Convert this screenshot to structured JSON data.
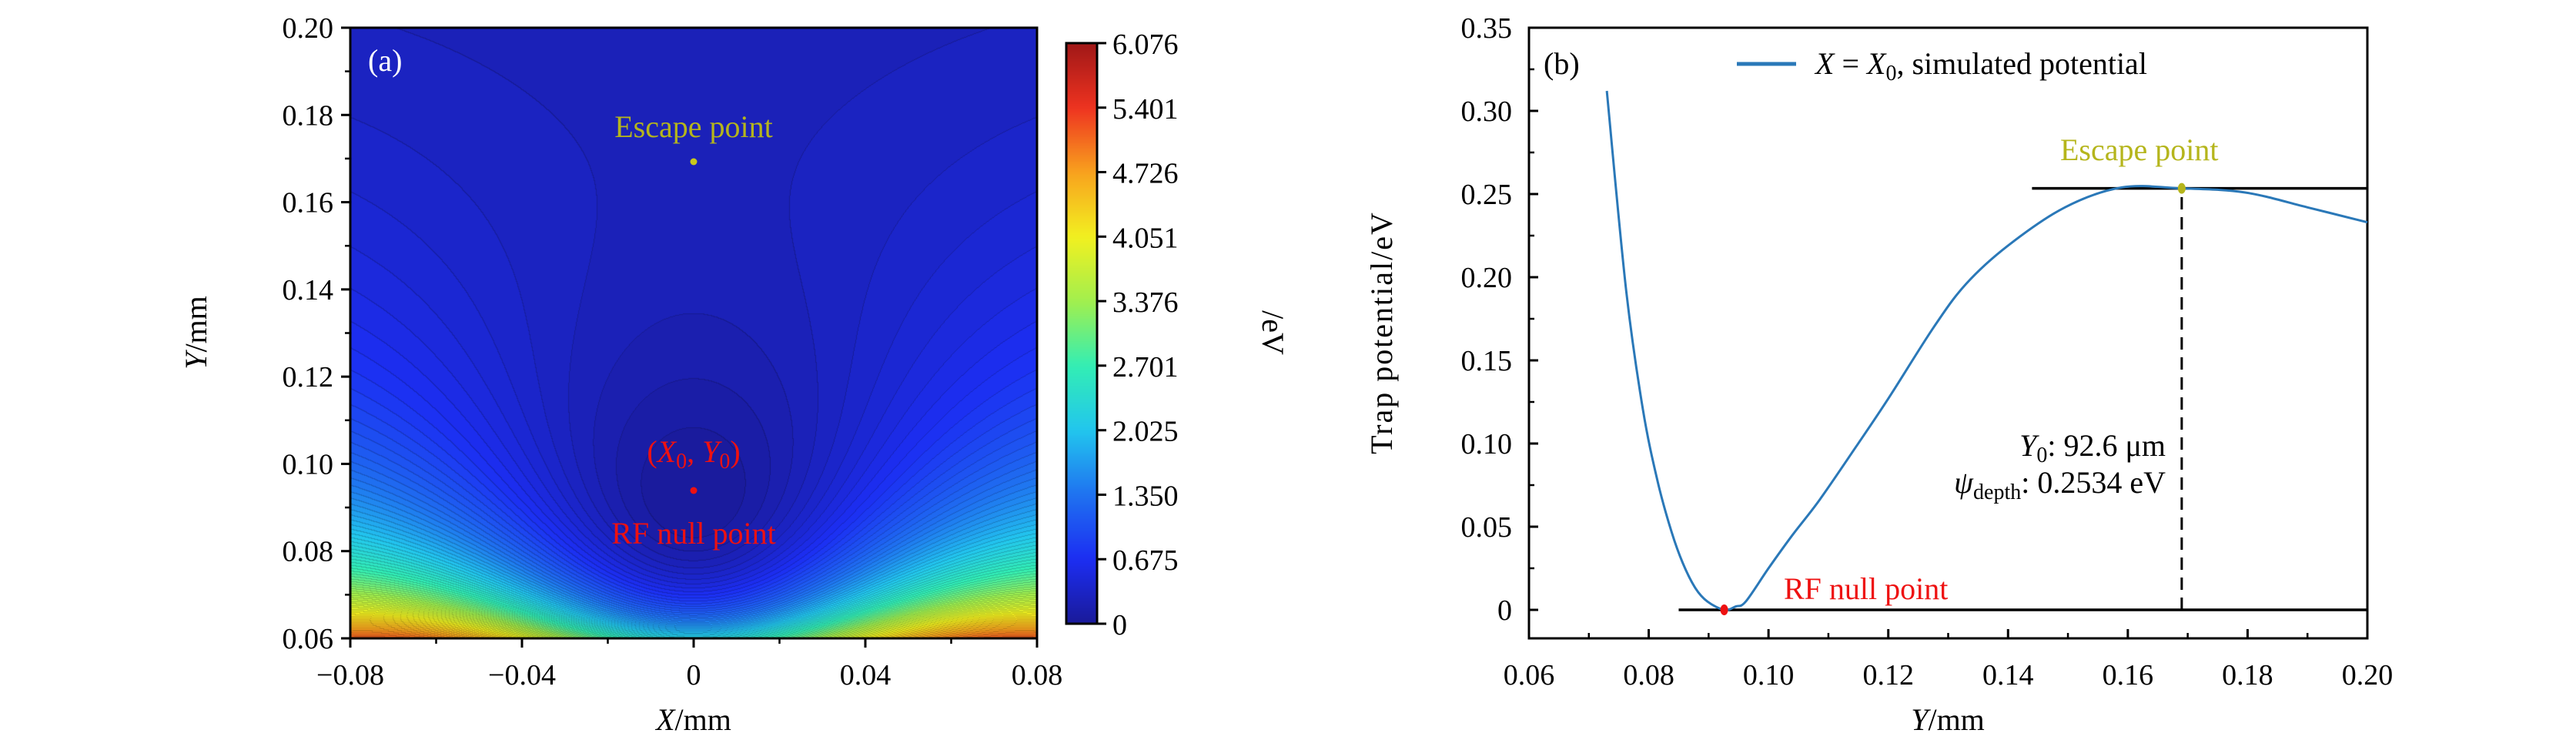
{
  "chart_data": [
    {
      "panel": "(a)",
      "type": "heatmap",
      "xlabel": {
        "var": "X",
        "unit": "/mm"
      },
      "ylabel": {
        "var": "Y",
        "unit": "/mm"
      },
      "xlim": [
        -0.08,
        0.08
      ],
      "ylim": [
        0.06,
        0.2
      ],
      "xticks": [
        "−0.08",
        "−0.04",
        "0",
        "0.04",
        "0.08"
      ],
      "xtick_values": [
        -0.08,
        -0.04,
        0,
        0.04,
        0.08
      ],
      "yticks": [
        "0.06",
        "0.08",
        "0.10",
        "0.12",
        "0.14",
        "0.16",
        "0.18",
        "0.20"
      ],
      "ytick_values": [
        0.06,
        0.08,
        0.1,
        0.12,
        0.14,
        0.16,
        0.18,
        0.2
      ],
      "colorbar": {
        "label": "/eV",
        "range": [
          0,
          6.076
        ],
        "ticks": [
          "0",
          "0.675",
          "1.350",
          "2.025",
          "2.701",
          "3.376",
          "4.051",
          "4.726",
          "5.401",
          "6.076"
        ],
        "tick_values": [
          0,
          0.675,
          1.35,
          2.025,
          2.701,
          3.376,
          4.051,
          4.726,
          5.401,
          6.076
        ],
        "colormap": "jet",
        "colors": [
          "#1a1a98",
          "#1c2ef2",
          "#1f72f0",
          "#22c6ee",
          "#33eeb4",
          "#a2ef4e",
          "#f2f020",
          "#f8a21e",
          "#ee3320",
          "#a01818"
        ]
      },
      "points": [
        {
          "name": "escape",
          "x": 0,
          "y": 0.169,
          "label": "Escape point",
          "color": "#b5b51c"
        },
        {
          "name": "rf-null",
          "x": 0,
          "y": 0.0926,
          "label": "RF null point",
          "label2": {
            "open": "(",
            "x": "X",
            "sub": "0",
            "sep": ", ",
            "y": "Y",
            "sub2": "0",
            "close": ")"
          },
          "color": "#ee1111"
        }
      ]
    },
    {
      "panel": "(b)",
      "type": "line",
      "xlabel": {
        "var": "Y",
        "unit": "/mm"
      },
      "ylabel": "Trap potential/eV",
      "xlim": [
        0.06,
        0.2
      ],
      "ylim": [
        -0.017,
        0.35
      ],
      "xticks": [
        "0.06",
        "0.08",
        "0.10",
        "0.12",
        "0.14",
        "0.16",
        "0.18",
        "0.20"
      ],
      "xtick_values": [
        0.06,
        0.08,
        0.1,
        0.12,
        0.14,
        0.16,
        0.18,
        0.2
      ],
      "yticks": [
        "0",
        "0.05",
        "0.10",
        "0.15",
        "0.20",
        "0.25",
        "0.30",
        "0.35"
      ],
      "ytick_values": [
        0,
        0.05,
        0.1,
        0.15,
        0.2,
        0.25,
        0.3,
        0.35
      ],
      "legend": {
        "position": "top-right",
        "var": "X",
        "eq": " = ",
        "var2": "X",
        "sub": "0",
        "rest": ", simulated potential",
        "color": "#2a78b8"
      },
      "series": [
        {
          "name": "X = X0, simulated potential",
          "color": "#2a78b8",
          "x": [
            0.073,
            0.0762,
            0.079,
            0.0815,
            0.0838,
            0.0857,
            0.0878,
            0.0898,
            0.0926,
            0.0945,
            0.0962,
            0.1,
            0.104,
            0.1085,
            0.1146,
            0.12,
            0.1276,
            0.133,
            0.14,
            0.1495,
            0.159,
            0.169,
            0.1795,
            0.19,
            0.2
          ],
          "y": [
            0.312,
            0.193,
            0.121,
            0.077,
            0.047,
            0.028,
            0.013,
            0.005,
            0.0,
            0.002,
            0.005,
            0.025,
            0.045,
            0.066,
            0.098,
            0.127,
            0.17,
            0.196,
            0.219,
            0.242,
            0.254,
            0.2534,
            0.251,
            0.242,
            0.233
          ]
        }
      ],
      "hlines": [
        {
          "name": "escape-level",
          "y": 0.2534,
          "x": [
            0.144,
            0.2
          ]
        },
        {
          "name": "zero-level",
          "y": 0,
          "x": [
            0.085,
            0.2
          ]
        }
      ],
      "vline": {
        "name": "escape-dashed",
        "x": 0.169,
        "y": [
          0,
          0.2534
        ]
      },
      "points": [
        {
          "name": "escape",
          "x": 0.169,
          "y": 0.2534,
          "label": "Escape point",
          "color": "#b5b51c"
        },
        {
          "name": "rf-null",
          "x": 0.0926,
          "y": 0,
          "label": "RF null point",
          "color": "#ee1111"
        }
      ],
      "annotations": {
        "y0": {
          "var": "Y",
          "sub": "0",
          "text": ":  92.6 μm"
        },
        "depth": {
          "var": "ψ",
          "sub": "depth",
          "text": ":  0.2534 eV"
        }
      }
    }
  ]
}
